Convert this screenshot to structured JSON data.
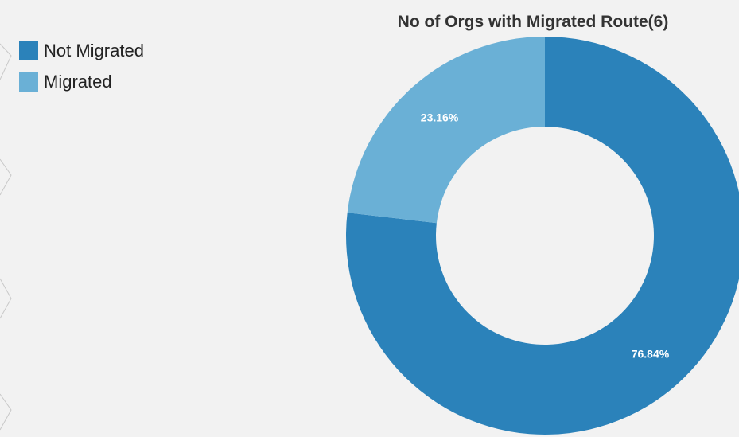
{
  "chart_data": {
    "type": "pie",
    "title": "No of Orgs with Migrated Route(6)",
    "categories": [
      "Not Migrated",
      "Migrated"
    ],
    "values": [
      76.84,
      23.16
    ],
    "labels": [
      "76.84%",
      "23.16%"
    ],
    "colors": [
      "#2b82ba",
      "#6ab0d6"
    ],
    "donut": true,
    "legend_position": "top-left"
  }
}
